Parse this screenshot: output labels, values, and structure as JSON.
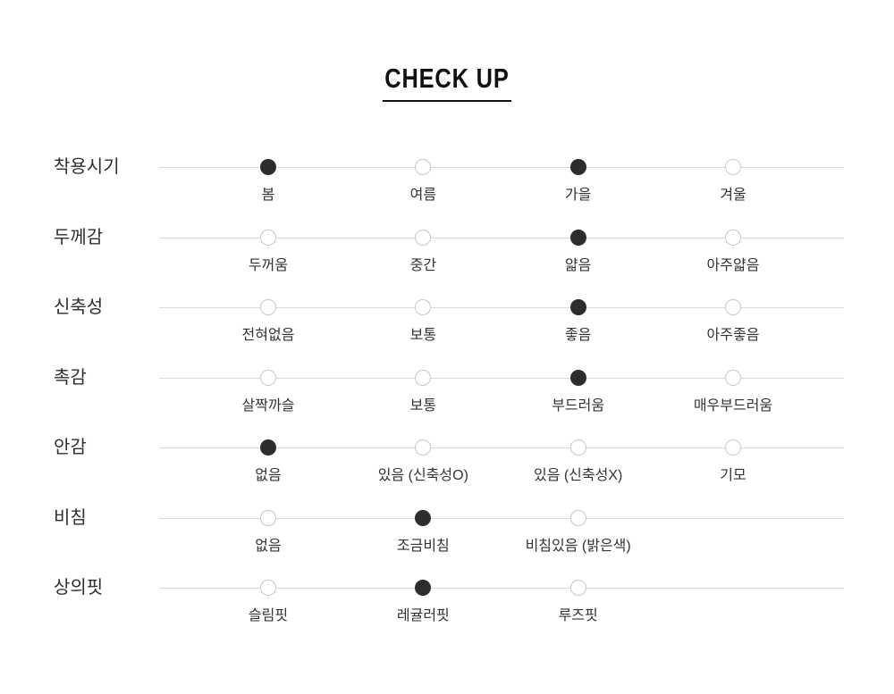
{
  "title": "CHECK UP",
  "colors": {
    "selected_dot": "#2d2d2d",
    "unselected_dot_border": "#c8c8c8",
    "track_line": "#d9d9d9",
    "text": "#333333",
    "title_text": "#111111"
  },
  "chart": {
    "rows": [
      {
        "key": "wearing-season",
        "label": "착용시기",
        "options": [
          {
            "label": "봄",
            "selected": true
          },
          {
            "label": "여름",
            "selected": false
          },
          {
            "label": "가을",
            "selected": true
          },
          {
            "label": "겨울",
            "selected": false
          }
        ]
      },
      {
        "key": "thickness",
        "label": "두께감",
        "options": [
          {
            "label": "두꺼움",
            "selected": false
          },
          {
            "label": "중간",
            "selected": false
          },
          {
            "label": "얇음",
            "selected": true
          },
          {
            "label": "아주얇음",
            "selected": false
          }
        ]
      },
      {
        "key": "stretch",
        "label": "신축성",
        "options": [
          {
            "label": "전혀없음",
            "selected": false
          },
          {
            "label": "보통",
            "selected": false
          },
          {
            "label": "좋음",
            "selected": true
          },
          {
            "label": "아주좋음",
            "selected": false
          }
        ]
      },
      {
        "key": "texture",
        "label": "촉감",
        "options": [
          {
            "label": "살짝까슬",
            "selected": false
          },
          {
            "label": "보통",
            "selected": false
          },
          {
            "label": "부드러움",
            "selected": true
          },
          {
            "label": "매우부드러움",
            "selected": false
          }
        ]
      },
      {
        "key": "lining",
        "label": "안감",
        "options": [
          {
            "label": "없음",
            "selected": true
          },
          {
            "label": "있음 (신축성O)",
            "selected": false
          },
          {
            "label": "있음 (신축성X)",
            "selected": false
          },
          {
            "label": "기모",
            "selected": false
          }
        ]
      },
      {
        "key": "sheerness",
        "label": "비침",
        "options": [
          {
            "label": "없음",
            "selected": false
          },
          {
            "label": "조금비침",
            "selected": true
          },
          {
            "label": "비침있음 (밝은색)",
            "selected": false
          }
        ]
      },
      {
        "key": "top-fit",
        "label": "상의핏",
        "options": [
          {
            "label": "슬림핏",
            "selected": false
          },
          {
            "label": "레귤러핏",
            "selected": true
          },
          {
            "label": "루즈핏",
            "selected": false
          }
        ]
      }
    ]
  }
}
